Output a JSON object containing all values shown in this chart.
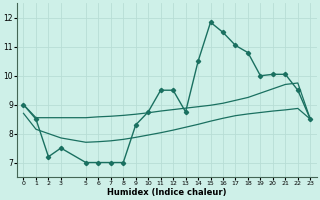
{
  "xlabel": "Humidex (Indice chaleur)",
  "bg_color": "#cef0e8",
  "grid_color": "#b8ddd5",
  "line_color": "#1a7060",
  "xlim": [
    -0.5,
    23.5
  ],
  "ylim": [
    6.5,
    12.5
  ],
  "yticks": [
    7,
    8,
    9,
    10,
    11,
    12
  ],
  "xticks": [
    0,
    1,
    2,
    3,
    5,
    6,
    7,
    8,
    9,
    10,
    11,
    12,
    13,
    14,
    15,
    16,
    17,
    18,
    19,
    20,
    21,
    22,
    23
  ],
  "s1x": [
    0,
    1,
    2,
    3,
    5,
    6,
    7,
    8,
    9,
    10,
    11,
    12,
    13,
    14,
    15,
    16,
    17,
    18,
    19,
    20,
    21,
    22,
    23
  ],
  "s1y": [
    9.0,
    8.5,
    7.2,
    7.5,
    7.0,
    7.0,
    7.0,
    7.0,
    8.3,
    8.75,
    9.5,
    9.5,
    8.75,
    10.5,
    11.85,
    11.5,
    11.05,
    10.8,
    10.0,
    10.05,
    10.05,
    9.5,
    8.5
  ],
  "s2x": [
    0,
    1,
    2,
    3,
    5,
    6,
    7,
    8,
    9,
    10,
    11,
    12,
    13,
    14,
    15,
    16,
    17,
    18,
    19,
    20,
    21,
    22,
    23
  ],
  "s2y": [
    9.0,
    8.55,
    8.55,
    8.55,
    8.55,
    8.58,
    8.6,
    8.63,
    8.67,
    8.72,
    8.78,
    8.83,
    8.88,
    8.93,
    8.98,
    9.05,
    9.15,
    9.25,
    9.4,
    9.55,
    9.7,
    9.75,
    8.5
  ],
  "s3x": [
    0,
    1,
    2,
    3,
    5,
    6,
    7,
    8,
    9,
    10,
    11,
    12,
    13,
    14,
    15,
    16,
    17,
    18,
    19,
    20,
    21,
    22,
    23
  ],
  "s3y": [
    8.7,
    8.15,
    8.0,
    7.85,
    7.7,
    7.72,
    7.75,
    7.8,
    7.87,
    7.95,
    8.03,
    8.12,
    8.22,
    8.32,
    8.43,
    8.53,
    8.62,
    8.68,
    8.73,
    8.78,
    8.82,
    8.87,
    8.5
  ]
}
